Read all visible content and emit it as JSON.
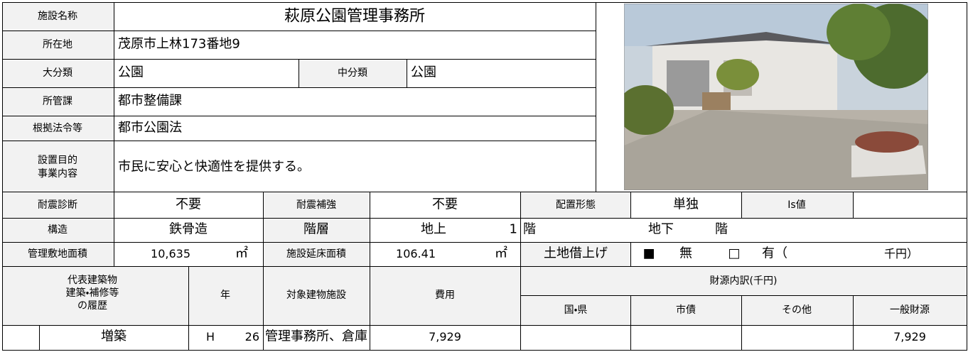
{
  "facility": {
    "name_label": "施設名称",
    "name": "萩原公園管理事務所",
    "address_label": "所在地",
    "address": "茂原市上林173番地9",
    "major_label": "大分類",
    "major": "公園",
    "minor_label": "中分類",
    "minor": "公園",
    "dept_label": "所管課",
    "dept": "都市整備課",
    "law_label": "根拠法令等",
    "law": "都市公園法",
    "purpose_label": [
      "設置目的",
      "事業内容"
    ],
    "purpose": "市民に安心と快適性を提供する。"
  },
  "building": {
    "seismic_check_label": "耐震診断",
    "seismic_check": "不要",
    "seismic_retrofit_label": "耐震補強",
    "seismic_retrofit": "不要",
    "layout_label": "配置形態",
    "layout": "単独",
    "is_label": "Is値",
    "structure_label": "構造",
    "structure": "鉄骨造",
    "floors_label": "階層",
    "above_label": "地上",
    "above": "1",
    "floor_unit": "階",
    "below_label": "地下",
    "floor_unit2": "階",
    "site_area_label": "管理敷地面積",
    "site_area": "10,635",
    "area_unit": "㎡",
    "floor_area_label": "施設延床面積",
    "floor_area": "106.41",
    "area_unit2": "㎡",
    "land_lease_label": "土地借上げ",
    "no_box": "■",
    "no_label": "無",
    "yes_box": "□",
    "yes_label": "有（",
    "yen_label": "千円）"
  },
  "history": {
    "header": {
      "building_label": [
        "代表建築物",
        "建築・補修等",
        "の履歴"
      ],
      "year": "年",
      "target": "対象建物施設",
      "cost": "費用",
      "funding": "財源内訳(千円)",
      "national": "国・県",
      "bond": "市債",
      "other": "その他",
      "general": "一般財源"
    },
    "rows": [
      {
        "work": "増築",
        "era": "H",
        "year": "26",
        "target": "管理事務所、倉庫",
        "cost": "7,929",
        "general": "7,929"
      }
    ]
  }
}
